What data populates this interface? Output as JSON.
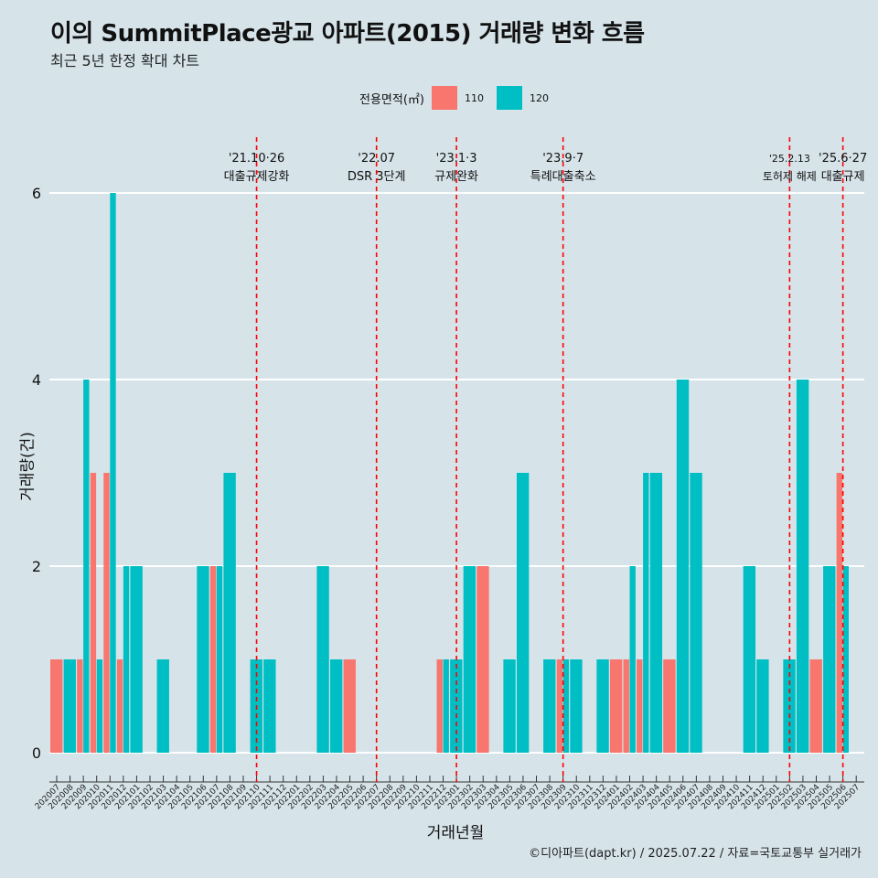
{
  "title": "이의 SummitPlace광교 아파트(2015) 거래량 변화 흐름",
  "subtitle": "최근 5년 한정 확대 차트",
  "caption": "©디아파트(dapt.kr) / 2025.07.22 / 자료=국토교통부 실거래가",
  "legend": {
    "title": "전용면적(㎡)",
    "items": [
      {
        "label": "110",
        "color": "#f8766d"
      },
      {
        "label": "120",
        "color": "#00bfc4"
      }
    ]
  },
  "chart_data": {
    "type": "bar",
    "xlabel": "거래년월",
    "ylabel": "거래량(건)",
    "ylim": [
      0,
      6
    ],
    "yticks": [
      0,
      2,
      4,
      6
    ],
    "categories": [
      "202007",
      "202008",
      "202009",
      "202010",
      "202011",
      "202012",
      "202101",
      "202102",
      "202103",
      "202104",
      "202105",
      "202106",
      "202107",
      "202108",
      "202109",
      "202110",
      "202111",
      "202112",
      "202201",
      "202202",
      "202203",
      "202204",
      "202205",
      "202206",
      "202207",
      "202208",
      "202209",
      "202210",
      "202211",
      "202212",
      "202301",
      "202302",
      "202303",
      "202304",
      "202305",
      "202306",
      "202307",
      "202308",
      "202309",
      "202310",
      "202311",
      "202312",
      "202401",
      "202402",
      "202403",
      "202404",
      "202405",
      "202406",
      "202407",
      "202408",
      "202409",
      "202410",
      "202411",
      "202412",
      "202501",
      "202502",
      "202503",
      "202504",
      "202505",
      "202506",
      "202507"
    ],
    "bars": [
      {
        "month": "202007",
        "segments": [
          {
            "size": "110",
            "value": 1
          }
        ]
      },
      {
        "month": "202008",
        "segments": [
          {
            "size": "120",
            "value": 1
          }
        ]
      },
      {
        "month": "202009",
        "segments": [
          {
            "size": "110",
            "value": 1
          },
          {
            "size": "120",
            "value": 4
          }
        ]
      },
      {
        "month": "202010",
        "segments": [
          {
            "size": "110",
            "value": 3
          },
          {
            "size": "120",
            "value": 1
          }
        ]
      },
      {
        "month": "202011",
        "segments": [
          {
            "size": "110",
            "value": 3
          },
          {
            "size": "120",
            "value": 6
          }
        ]
      },
      {
        "month": "202012",
        "segments": [
          {
            "size": "110",
            "value": 1
          },
          {
            "size": "120",
            "value": 2
          }
        ]
      },
      {
        "month": "202101",
        "segments": [
          {
            "size": "120",
            "value": 2
          }
        ]
      },
      {
        "month": "202103",
        "segments": [
          {
            "size": "120",
            "value": 1
          }
        ]
      },
      {
        "month": "202106",
        "segments": [
          {
            "size": "120",
            "value": 2
          }
        ]
      },
      {
        "month": "202107",
        "segments": [
          {
            "size": "110",
            "value": 2
          },
          {
            "size": "120",
            "value": 2
          }
        ]
      },
      {
        "month": "202108",
        "segments": [
          {
            "size": "120",
            "value": 3
          }
        ]
      },
      {
        "month": "202110",
        "segments": [
          {
            "size": "120",
            "value": 1
          }
        ]
      },
      {
        "month": "202111",
        "segments": [
          {
            "size": "120",
            "value": 1
          }
        ]
      },
      {
        "month": "202203",
        "segments": [
          {
            "size": "120",
            "value": 2
          }
        ]
      },
      {
        "month": "202204",
        "segments": [
          {
            "size": "120",
            "value": 1
          }
        ]
      },
      {
        "month": "202205",
        "segments": [
          {
            "size": "110",
            "value": 1
          }
        ]
      },
      {
        "month": "202212",
        "segments": [
          {
            "size": "110",
            "value": 1
          },
          {
            "size": "120",
            "value": 1
          }
        ]
      },
      {
        "month": "202301",
        "segments": [
          {
            "size": "120",
            "value": 1
          }
        ]
      },
      {
        "month": "202302",
        "segments": [
          {
            "size": "120",
            "value": 2
          }
        ]
      },
      {
        "month": "202303",
        "segments": [
          {
            "size": "110",
            "value": 2
          }
        ]
      },
      {
        "month": "202305",
        "segments": [
          {
            "size": "120",
            "value": 1
          }
        ]
      },
      {
        "month": "202306",
        "segments": [
          {
            "size": "120",
            "value": 3
          }
        ]
      },
      {
        "month": "202308",
        "segments": [
          {
            "size": "120",
            "value": 1
          }
        ]
      },
      {
        "month": "202309",
        "segments": [
          {
            "size": "110",
            "value": 1
          },
          {
            "size": "120",
            "value": 1
          }
        ]
      },
      {
        "month": "202310",
        "segments": [
          {
            "size": "120",
            "value": 1
          }
        ]
      },
      {
        "month": "202312",
        "segments": [
          {
            "size": "120",
            "value": 1
          }
        ]
      },
      {
        "month": "202401",
        "segments": [
          {
            "size": "110",
            "value": 1
          }
        ]
      },
      {
        "month": "202402",
        "segments": [
          {
            "size": "110",
            "value": 1
          },
          {
            "size": "120",
            "value": 2
          }
        ]
      },
      {
        "month": "202403",
        "segments": [
          {
            "size": "110",
            "value": 1
          },
          {
            "size": "120",
            "value": 3
          }
        ]
      },
      {
        "month": "202404",
        "segments": [
          {
            "size": "120",
            "value": 3
          }
        ]
      },
      {
        "month": "202405",
        "segments": [
          {
            "size": "110",
            "value": 1
          }
        ]
      },
      {
        "month": "202406",
        "segments": [
          {
            "size": "120",
            "value": 4
          }
        ]
      },
      {
        "month": "202407",
        "segments": [
          {
            "size": "120",
            "value": 3
          }
        ]
      },
      {
        "month": "202411",
        "segments": [
          {
            "size": "120",
            "value": 2
          }
        ]
      },
      {
        "month": "202412",
        "segments": [
          {
            "size": "120",
            "value": 1
          }
        ]
      },
      {
        "month": "202502",
        "segments": [
          {
            "size": "120",
            "value": 1
          }
        ]
      },
      {
        "month": "202503",
        "segments": [
          {
            "size": "120",
            "value": 4
          }
        ]
      },
      {
        "month": "202504",
        "segments": [
          {
            "size": "110",
            "value": 1
          }
        ]
      },
      {
        "month": "202505",
        "segments": [
          {
            "size": "120",
            "value": 2
          }
        ]
      },
      {
        "month": "202506",
        "segments": [
          {
            "size": "110",
            "value": 3
          },
          {
            "size": "120",
            "value": 2
          }
        ]
      }
    ],
    "events": [
      {
        "month": "202110",
        "date": "'21.10·26",
        "label": "대출규제강화"
      },
      {
        "month": "202207",
        "date": "'22.07",
        "label": "DSR 3단계"
      },
      {
        "month": "202301",
        "date": "'23.1·3",
        "label": "규제완화"
      },
      {
        "month": "202309",
        "date": "'23.9·7",
        "label": "특례대출축소"
      },
      {
        "month": "202502",
        "date": "'25.2.13",
        "label": "토허제 해제"
      },
      {
        "month": "202506",
        "date": "'25.6·27",
        "label": "대출규제"
      }
    ],
    "event_line_color": "#ff0000",
    "grid": true
  }
}
